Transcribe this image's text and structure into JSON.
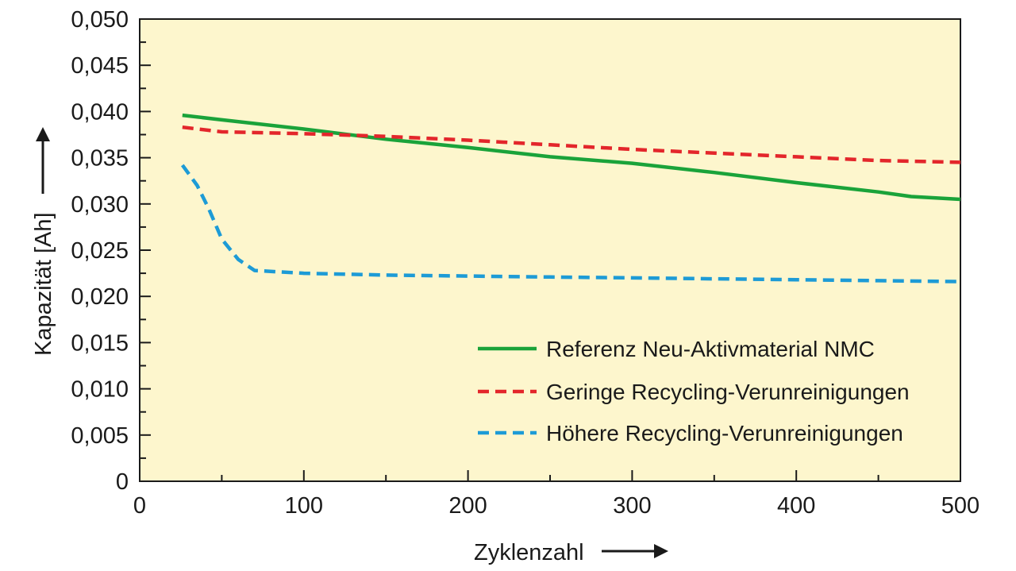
{
  "chart_data": {
    "type": "line",
    "xlabel": "Zyklenzahl",
    "ylabel": "Kapazität [Ah]",
    "xlim": [
      0,
      500
    ],
    "ylim": [
      0,
      0.05
    ],
    "x_ticks": [
      0,
      100,
      200,
      300,
      400,
      500
    ],
    "x_tick_labels": [
      "0",
      "100",
      "200",
      "300",
      "400",
      "500"
    ],
    "y_ticks": [
      0,
      0.005,
      0.01,
      0.015,
      0.02,
      0.025,
      0.03,
      0.035,
      0.04,
      0.045,
      0.05
    ],
    "y_tick_labels": [
      "0",
      "0,005",
      "0,010",
      "0,015",
      "0,020",
      "0,025",
      "0,030",
      "0,035",
      "0,040",
      "0,045",
      "0,050"
    ],
    "background_color": "#fdf6cd",
    "grid": false,
    "legend_position": "bottom-right",
    "series": [
      {
        "name": "Referenz Neu-Aktivmaterial NMC",
        "color": "#1aa33a",
        "style": "solid",
        "points": [
          [
            26,
            0.0396
          ],
          [
            50,
            0.0391
          ],
          [
            100,
            0.0381
          ],
          [
            150,
            0.037
          ],
          [
            200,
            0.0361
          ],
          [
            250,
            0.0351
          ],
          [
            300,
            0.0344
          ],
          [
            350,
            0.0334
          ],
          [
            400,
            0.0323
          ],
          [
            450,
            0.0313
          ],
          [
            470,
            0.0308
          ],
          [
            500,
            0.0305
          ]
        ]
      },
      {
        "name": "Geringe Recycling-Verunreinigungen",
        "color": "#e3262b",
        "style": "dashed",
        "points": [
          [
            26,
            0.0383
          ],
          [
            50,
            0.0378
          ],
          [
            100,
            0.0376
          ],
          [
            150,
            0.0373
          ],
          [
            200,
            0.0369
          ],
          [
            250,
            0.0364
          ],
          [
            300,
            0.0359
          ],
          [
            350,
            0.0355
          ],
          [
            400,
            0.0351
          ],
          [
            450,
            0.0347
          ],
          [
            500,
            0.0345
          ]
        ]
      },
      {
        "name": "Höhere Recycling-Verunreinigungen",
        "color": "#1d9bd6",
        "style": "dashed",
        "points": [
          [
            26,
            0.0342
          ],
          [
            35,
            0.032
          ],
          [
            42,
            0.0295
          ],
          [
            50,
            0.0262
          ],
          [
            60,
            0.024
          ],
          [
            70,
            0.0228
          ],
          [
            100,
            0.0225
          ],
          [
            150,
            0.0223
          ],
          [
            200,
            0.0222
          ],
          [
            250,
            0.0221
          ],
          [
            300,
            0.022
          ],
          [
            350,
            0.0219
          ],
          [
            400,
            0.0218
          ],
          [
            450,
            0.0217
          ],
          [
            500,
            0.0216
          ]
        ]
      }
    ]
  }
}
